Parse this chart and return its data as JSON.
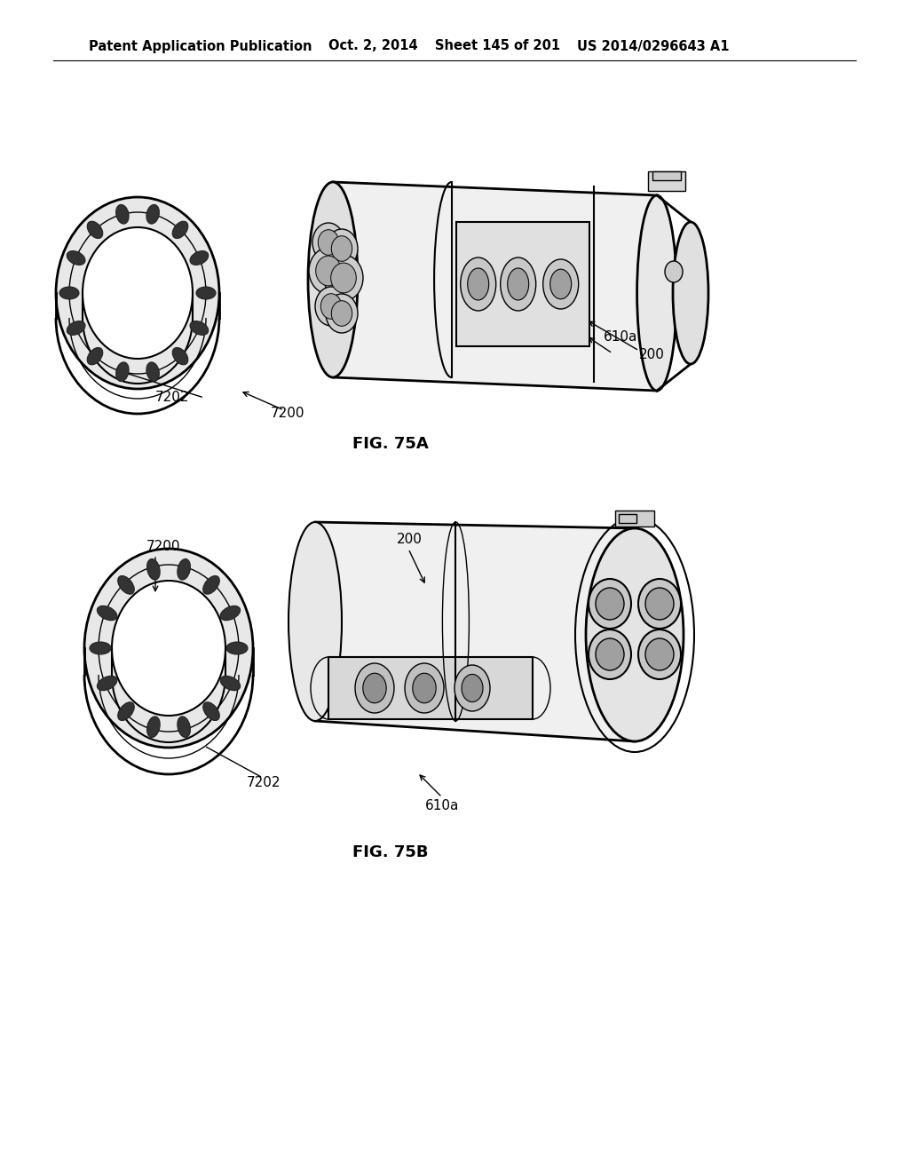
{
  "bg_color": "#ffffff",
  "line_color": "#000000",
  "header_text": "Patent Application Publication",
  "header_date": "Oct. 2, 2014",
  "header_sheet": "Sheet 145 of 201",
  "header_patent": "US 2014/0296643 A1",
  "fig_a_label": "FIG. 75A",
  "fig_b_label": "FIG. 75B",
  "header_fontsize": 10.5,
  "label_fontsize": 11,
  "figcaption_fontsize": 13
}
